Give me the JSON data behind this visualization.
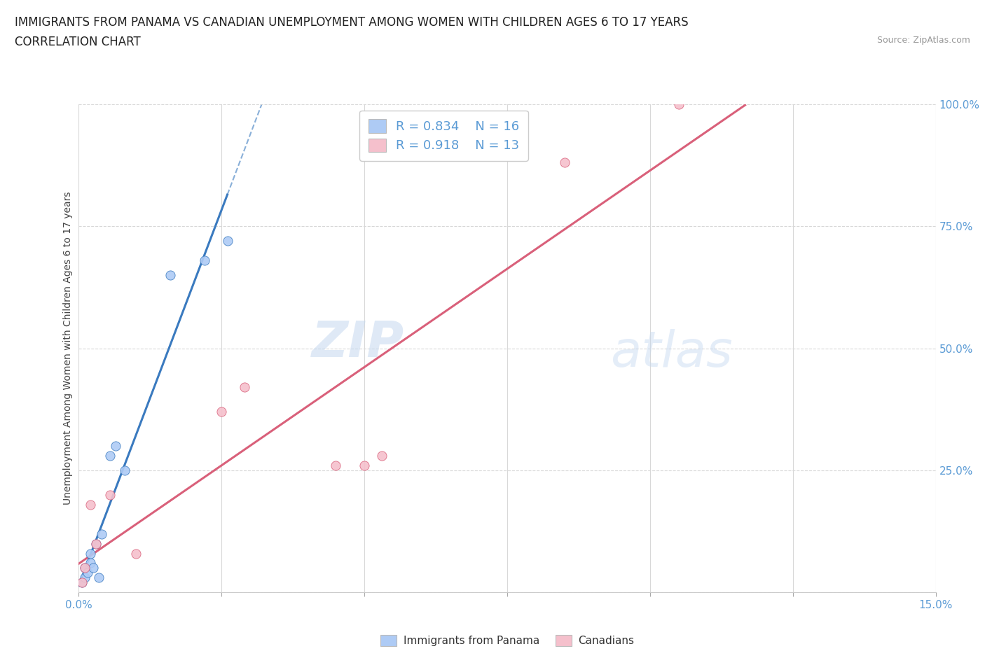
{
  "title_line1": "IMMIGRANTS FROM PANAMA VS CANADIAN UNEMPLOYMENT AMONG WOMEN WITH CHILDREN AGES 6 TO 17 YEARS",
  "title_line2": "CORRELATION CHART",
  "source": "Source: ZipAtlas.com",
  "ylabel": "Unemployment Among Women with Children Ages 6 to 17 years",
  "xlim": [
    0.0,
    15.0
  ],
  "ylim": [
    0.0,
    100.0
  ],
  "xticks": [
    0.0,
    2.5,
    5.0,
    7.5,
    10.0,
    12.5,
    15.0
  ],
  "yticks": [
    0.0,
    25.0,
    50.0,
    75.0,
    100.0
  ],
  "blue_scatter_x": [
    0.05,
    0.1,
    0.1,
    0.15,
    0.2,
    0.2,
    0.25,
    0.3,
    0.35,
    0.4,
    0.55,
    0.65,
    0.8,
    1.6,
    2.2,
    2.6
  ],
  "blue_scatter_y": [
    2.0,
    3.0,
    5.0,
    4.0,
    6.0,
    8.0,
    5.0,
    10.0,
    3.0,
    12.0,
    28.0,
    30.0,
    25.0,
    65.0,
    68.0,
    72.0
  ],
  "pink_scatter_x": [
    0.05,
    0.1,
    0.2,
    0.3,
    0.55,
    1.0,
    2.5,
    2.9,
    4.5,
    5.0,
    5.3,
    8.5,
    10.5
  ],
  "pink_scatter_y": [
    2.0,
    5.0,
    18.0,
    10.0,
    20.0,
    8.0,
    37.0,
    42.0,
    26.0,
    26.0,
    28.0,
    88.0,
    100.0
  ],
  "blue_color": "#aecbf5",
  "blue_line_color": "#3a7abf",
  "pink_color": "#f5c0cc",
  "pink_line_color": "#d9607a",
  "blue_r": "0.834",
  "blue_n": "16",
  "pink_r": "0.918",
  "pink_n": "13",
  "legend_label_blue": "Immigrants from Panama",
  "legend_label_pink": "Canadians",
  "watermark_zip": "ZIP",
  "watermark_atlas": "atlas",
  "background_color": "#ffffff",
  "grid_color": "#d8d8d8",
  "tick_color": "#5b9bd5",
  "title_fontsize": 12,
  "label_fontsize": 10,
  "tick_fontsize": 11
}
